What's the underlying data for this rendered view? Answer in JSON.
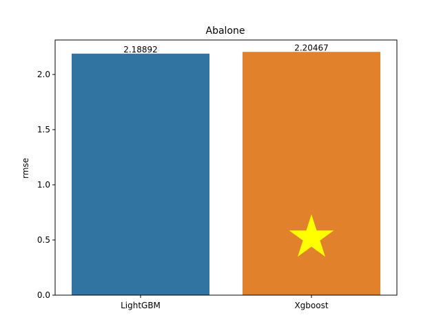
{
  "chart_data": {
    "type": "bar",
    "title": "Abalone",
    "xlabel": "",
    "ylabel": "rmse",
    "categories": [
      "LightGBM",
      "Xgboost"
    ],
    "values": [
      2.18892,
      2.20467
    ],
    "value_labels": [
      "2.18892",
      "2.20467"
    ],
    "colors": [
      "#3274a1",
      "#e1812c"
    ],
    "ylim": [
      0,
      2.2
    ],
    "yticks": [
      0.0,
      0.5,
      1.0,
      1.5,
      2.0
    ],
    "ytick_labels": [
      "0.0",
      "0.5",
      "1.0",
      "1.5",
      "2.0"
    ],
    "grid": false,
    "highlight": {
      "category": "Xgboost",
      "marker": "star",
      "color": "#ffff00",
      "y": 0.52
    }
  }
}
